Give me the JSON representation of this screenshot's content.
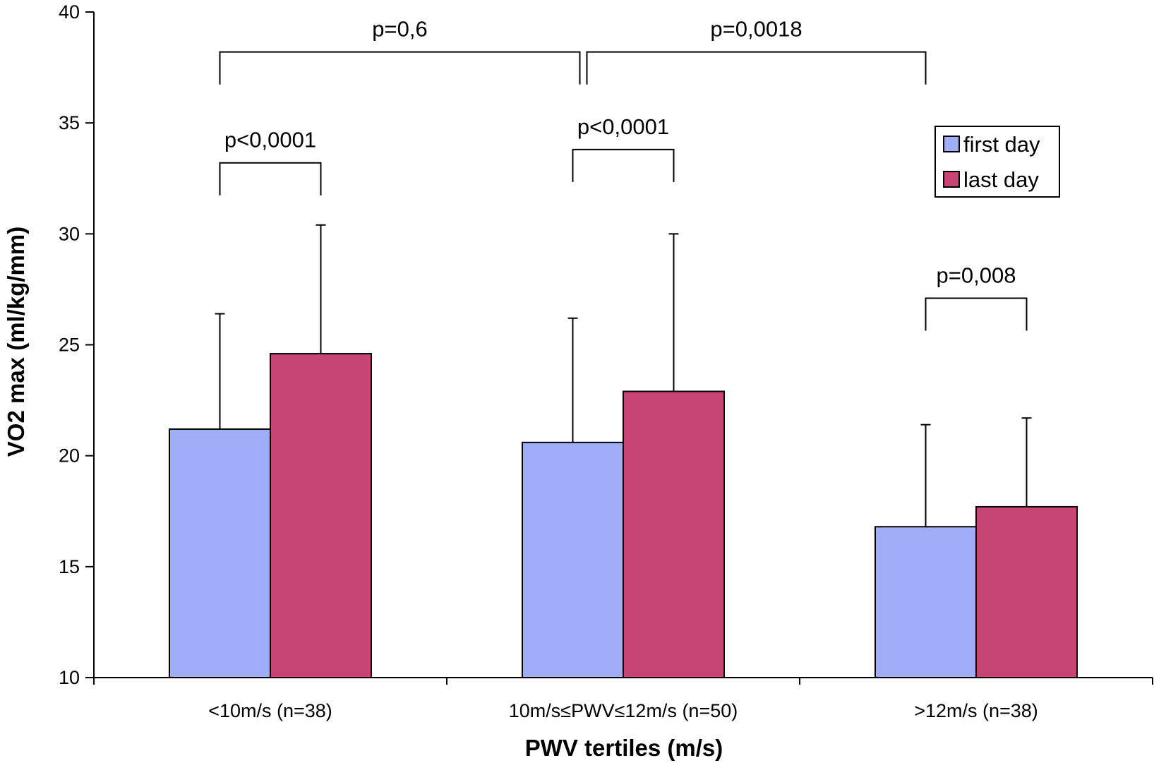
{
  "chart_data": {
    "type": "bar",
    "title": "",
    "xlabel": "PWV tertiles (m/s)",
    "ylabel": "VO2 max (ml/kg/mm)",
    "ylim": [
      10,
      40
    ],
    "yticks": [
      10,
      15,
      20,
      25,
      30,
      35,
      40
    ],
    "categories": [
      "<10m/s (n=38)",
      "10m/s≤PWV≤12m/s (n=50)",
      ">12m/s (n=38)"
    ],
    "series": [
      {
        "name": "first day",
        "color": "#a0aefa",
        "values": [
          21.2,
          20.6,
          16.8
        ],
        "error_upper": [
          26.4,
          26.2,
          21.4
        ]
      },
      {
        "name": "last day",
        "color": "#c84474",
        "values": [
          24.6,
          22.9,
          17.7
        ],
        "error_upper": [
          30.4,
          30.0,
          21.7
        ]
      }
    ],
    "grid": false,
    "legend_position": "top-right",
    "annotations": [
      {
        "label": "p<0,0001",
        "from": {
          "category": 0,
          "series": 0
        },
        "to": {
          "category": 0,
          "series": 1
        },
        "y": 33.2
      },
      {
        "label": "p<0,0001",
        "from": {
          "category": 1,
          "series": 0
        },
        "to": {
          "category": 1,
          "series": 1
        },
        "y": 33.8
      },
      {
        "label": "p=0,008",
        "from": {
          "category": 2,
          "series": 0
        },
        "to": {
          "category": 2,
          "series": 1
        },
        "y": 27.1
      },
      {
        "label": "p=0,6",
        "from": {
          "category": 0,
          "series": 0
        },
        "to": {
          "category": 1,
          "series": 0
        },
        "y": 38.2
      },
      {
        "label": "p=0,0018",
        "from": {
          "category": 1,
          "series": 0
        },
        "to": {
          "category": 2,
          "series": 0
        },
        "y": 38.2
      }
    ]
  }
}
